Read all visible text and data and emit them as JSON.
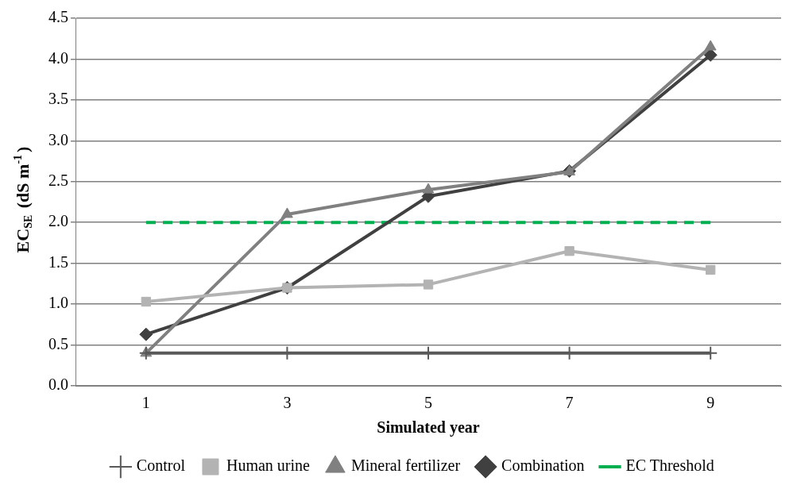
{
  "chart_data": {
    "type": "line",
    "xlabel": "Simulated year",
    "ylabel": "EC$_{SE}$ (dS m$^{-1}$)",
    "categories": [
      "1",
      "3",
      "5",
      "7",
      "9"
    ],
    "series": [
      {
        "name": "Control",
        "color": "#595959",
        "values": [
          0.4,
          0.4,
          0.4,
          0.4,
          0.4
        ],
        "marker": "cross",
        "line_style": "solid"
      },
      {
        "name": "Human urine",
        "color": "#b3b3b3",
        "values": [
          1.03,
          1.2,
          1.24,
          1.65,
          1.42
        ],
        "marker": "square",
        "line_style": "solid"
      },
      {
        "name": "Mineral fertilizer",
        "color": "#808080",
        "values": [
          0.4,
          2.1,
          2.4,
          2.62,
          4.15
        ],
        "marker": "triangle",
        "line_style": "solid"
      },
      {
        "name": "Combination",
        "color": "#404040",
        "values": [
          0.63,
          1.2,
          2.32,
          2.63,
          4.05
        ],
        "marker": "diamond",
        "line_style": "solid"
      },
      {
        "name": "EC Threshold",
        "color": "#00b050",
        "values": [
          2.0,
          2.0,
          2.0,
          2.0,
          2.0
        ],
        "marker": "none",
        "line_style": "dashed"
      }
    ],
    "ylim": [
      0,
      4.5
    ],
    "yticks": [
      {
        "value": 0,
        "label": "0.0"
      },
      0.5,
      {
        "value": 1,
        "label": "1.0"
      },
      1.5,
      {
        "value": 2,
        "label": "2.0"
      },
      2.5,
      {
        "value": 3,
        "label": "3.0"
      },
      3.5,
      {
        "value": 4,
        "label": "4.0"
      },
      4.5
    ],
    "grid": "y",
    "legend": "bottom"
  }
}
